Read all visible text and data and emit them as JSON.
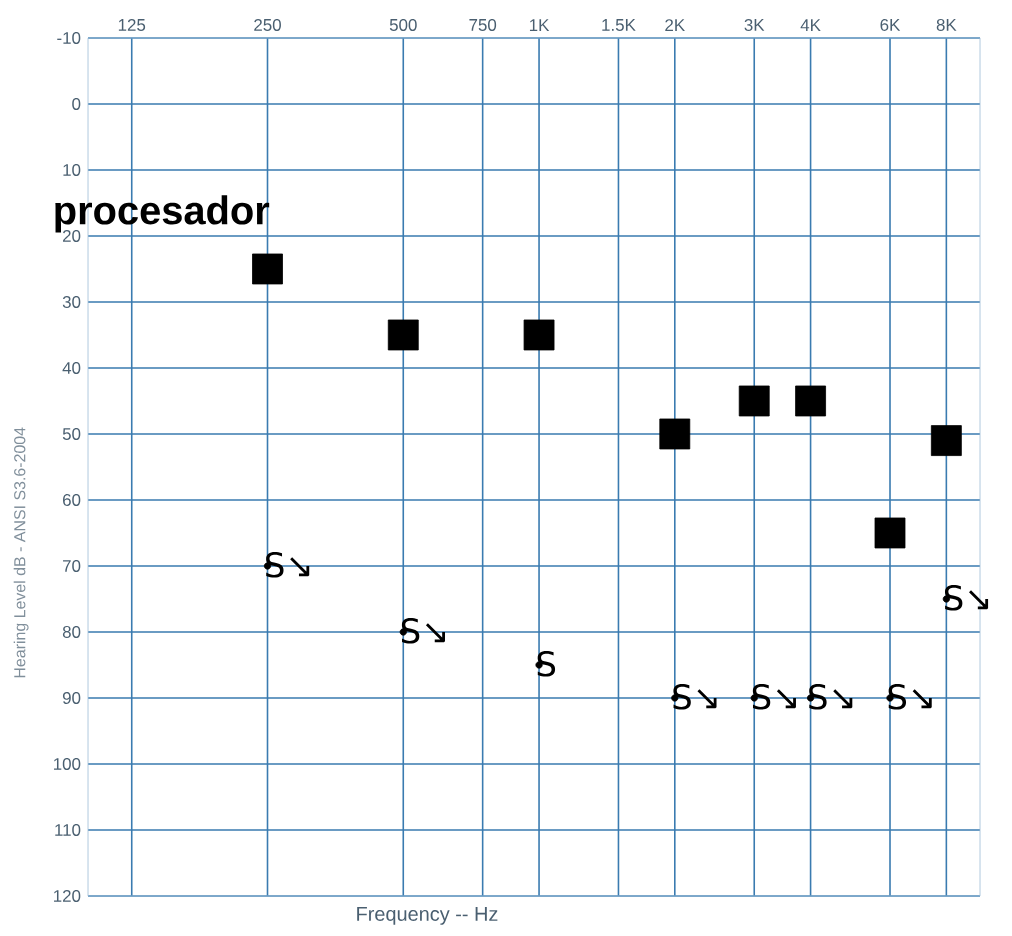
{
  "chart_data": {
    "type": "scatter",
    "xlabel": "Frequency -- Hz",
    "ylabel": "Hearing Level dB - ANSI S3.6-2004",
    "series": [
      {
        "x": [
          250,
          500,
          1000,
          2000,
          3000,
          4000,
          6000,
          8000
        ],
        "values": [
          25,
          35,
          35,
          50,
          45,
          45,
          65,
          51
        ],
        "color": "#000000",
        "marker": "square"
      },
      {
        "x": [
          250,
          500,
          1000,
          2000,
          3000,
          4000,
          6000,
          8000
        ],
        "values": [
          70,
          80,
          85,
          90,
          90,
          90,
          90,
          75
        ],
        "color": "#000000",
        "marker": "circle",
        "value_labels": [
          "S↘",
          "S↘",
          "S",
          "S↘",
          "S↘",
          "S↘",
          "S↘",
          "S↘"
        ]
      }
    ],
    "log": "x",
    "grid": true,
    "xlim": [
      100,
      9500
    ],
    "ylim": [
      120,
      -10
    ],
    "xticks": [
      125,
      250,
      500,
      {
        "value": 750,
        "label": "750"
      },
      {
        "value": 1000,
        "label": "1K"
      },
      {
        "value": 1500,
        "label": "1.5K"
      },
      {
        "value": 2000,
        "label": "2K"
      },
      {
        "value": 3000,
        "label": "3K"
      },
      {
        "value": 4000,
        "label": "4K"
      },
      {
        "value": 6000,
        "label": "6K"
      },
      {
        "value": 8000,
        "label": "8K"
      }
    ],
    "yticks": [
      -10,
      0,
      10,
      20,
      30,
      40,
      50,
      60,
      70,
      80,
      90,
      100,
      110,
      120
    ],
    "annotations": [
      "procesador"
    ]
  }
}
